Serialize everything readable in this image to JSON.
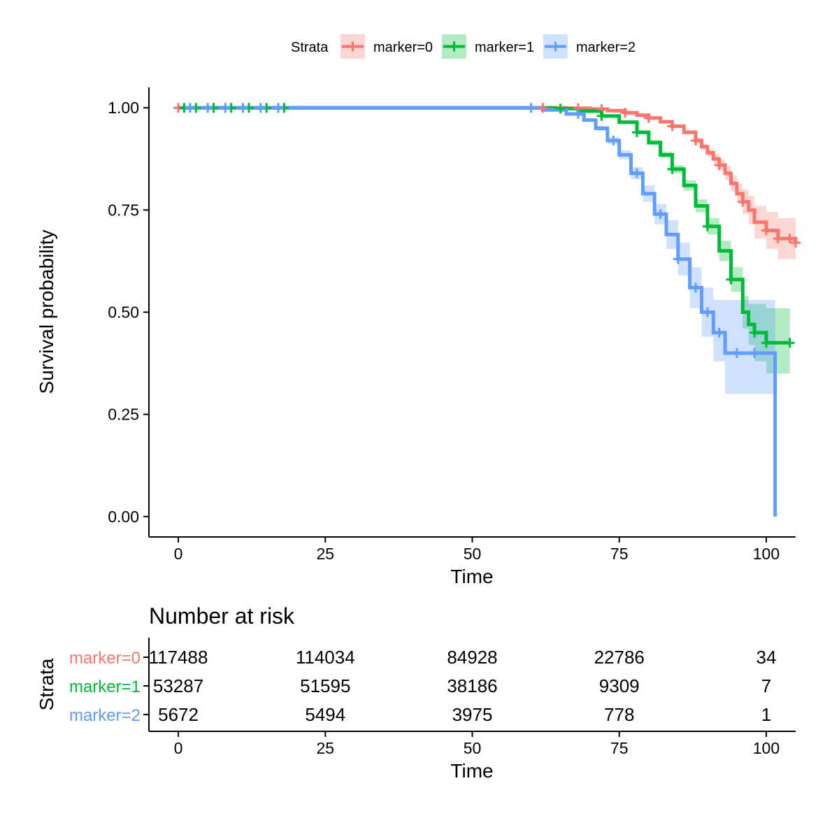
{
  "chart_data": [
    {
      "type": "line",
      "subtype": "kaplan-meier survival curve",
      "xlabel": "Time",
      "ylabel": "Survival probability",
      "xlim": [
        -5,
        105
      ],
      "ylim": [
        -0.05,
        1.05
      ],
      "xticks": [
        0,
        25,
        50,
        75,
        100
      ],
      "yticks": [
        0,
        0.25,
        0.5,
        0.75,
        1.0
      ],
      "ytick_labels": [
        "0.00",
        "0.25",
        "0.50",
        "0.75",
        "1.00"
      ],
      "grid": false,
      "legend": {
        "title": "Strata",
        "position": "top",
        "entries": [
          "marker=0",
          "marker=1",
          "marker=2"
        ]
      },
      "censor_marks": true,
      "confidence_bands": true,
      "series": [
        {
          "name": "marker=0",
          "color": "#F8766D",
          "x": [
            0,
            60,
            66,
            70,
            73,
            76,
            78,
            80,
            82,
            84,
            86,
            88,
            89,
            90,
            91,
            92,
            93,
            94,
            95,
            96,
            97,
            98,
            100,
            102,
            105
          ],
          "y": [
            1.0,
            1.0,
            0.999,
            0.997,
            0.993,
            0.988,
            0.982,
            0.975,
            0.966,
            0.955,
            0.94,
            0.92,
            0.905,
            0.89,
            0.875,
            0.86,
            0.84,
            0.815,
            0.79,
            0.77,
            0.75,
            0.72,
            0.7,
            0.68,
            0.67
          ],
          "ci_lower": [
            1.0,
            1.0,
            0.999,
            0.997,
            0.993,
            0.987,
            0.981,
            0.973,
            0.963,
            0.951,
            0.935,
            0.913,
            0.897,
            0.88,
            0.863,
            0.846,
            0.823,
            0.795,
            0.766,
            0.74,
            0.715,
            0.68,
            0.655,
            0.63,
            0.625
          ],
          "ci_upper": [
            1.0,
            1.0,
            0.999,
            0.997,
            0.993,
            0.989,
            0.983,
            0.977,
            0.969,
            0.959,
            0.945,
            0.927,
            0.913,
            0.9,
            0.887,
            0.874,
            0.857,
            0.835,
            0.814,
            0.8,
            0.785,
            0.76,
            0.745,
            0.73,
            0.72
          ],
          "censor_x": [
            0,
            62,
            68,
            72,
            76,
            80,
            84,
            88,
            92,
            96,
            100,
            102,
            104,
            105
          ]
        },
        {
          "name": "marker=1",
          "color": "#00BA38",
          "x": [
            0,
            58,
            64,
            68,
            72,
            75,
            78,
            80,
            82,
            84,
            86,
            88,
            90,
            92,
            94,
            96,
            97,
            98,
            100,
            102,
            104
          ],
          "y": [
            1.0,
            1.0,
            0.998,
            0.992,
            0.98,
            0.965,
            0.94,
            0.915,
            0.885,
            0.85,
            0.81,
            0.76,
            0.71,
            0.65,
            0.58,
            0.5,
            0.47,
            0.45,
            0.425,
            0.425,
            0.425
          ],
          "ci_lower": [
            1.0,
            1.0,
            0.998,
            0.991,
            0.978,
            0.962,
            0.935,
            0.909,
            0.877,
            0.84,
            0.797,
            0.744,
            0.69,
            0.625,
            0.55,
            0.46,
            0.42,
            0.38,
            0.35,
            0.35,
            0.35
          ],
          "ci_upper": [
            1.0,
            1.0,
            0.998,
            0.993,
            0.982,
            0.968,
            0.945,
            0.921,
            0.893,
            0.86,
            0.823,
            0.776,
            0.73,
            0.675,
            0.61,
            0.54,
            0.52,
            0.52,
            0.51,
            0.51,
            0.51
          ],
          "censor_x": [
            1,
            3,
            6,
            9,
            12,
            15,
            18,
            65,
            72,
            78,
            84,
            90,
            94,
            98,
            100,
            104
          ]
        },
        {
          "name": "marker=2",
          "color": "#619CFF",
          "x": [
            0,
            55,
            62,
            66,
            69,
            71,
            73,
            75,
            77,
            79,
            81,
            83,
            85,
            87,
            89,
            91,
            93,
            101.5,
            101.5
          ],
          "y": [
            1.0,
            1.0,
            0.995,
            0.985,
            0.97,
            0.95,
            0.92,
            0.885,
            0.84,
            0.79,
            0.74,
            0.69,
            0.63,
            0.56,
            0.5,
            0.45,
            0.4,
            0.4,
            0.0
          ],
          "ci_lower": [
            1.0,
            1.0,
            0.994,
            0.983,
            0.966,
            0.944,
            0.912,
            0.874,
            0.825,
            0.77,
            0.715,
            0.655,
            0.59,
            0.51,
            0.44,
            0.38,
            0.3,
            0.3,
            0.3
          ],
          "ci_upper": [
            1.0,
            1.0,
            0.996,
            0.987,
            0.974,
            0.956,
            0.928,
            0.896,
            0.855,
            0.81,
            0.765,
            0.725,
            0.67,
            0.61,
            0.56,
            0.53,
            0.53,
            0.53,
            0.53
          ],
          "censor_x": [
            2,
            5,
            8,
            11,
            14,
            17,
            60,
            68,
            74,
            78,
            82,
            85,
            88,
            90,
            92,
            95,
            98
          ]
        }
      ]
    },
    {
      "type": "table",
      "title": "Number at risk",
      "xlabel": "Time",
      "ylabel": "Strata",
      "xlim": [
        -5,
        105
      ],
      "xticks": [
        0,
        25,
        50,
        75,
        100
      ],
      "rows": [
        {
          "label": "marker=0",
          "color": "#F8766D",
          "values": [
            "117488",
            "114034",
            "84928",
            "22786",
            "34"
          ]
        },
        {
          "label": "marker=1",
          "color": "#00BA38",
          "values": [
            "53287",
            "51595",
            "38186",
            "9309",
            "7"
          ]
        },
        {
          "label": "marker=2",
          "color": "#619CFF",
          "values": [
            "5672",
            "5494",
            "3975",
            "778",
            "1"
          ]
        }
      ]
    }
  ]
}
